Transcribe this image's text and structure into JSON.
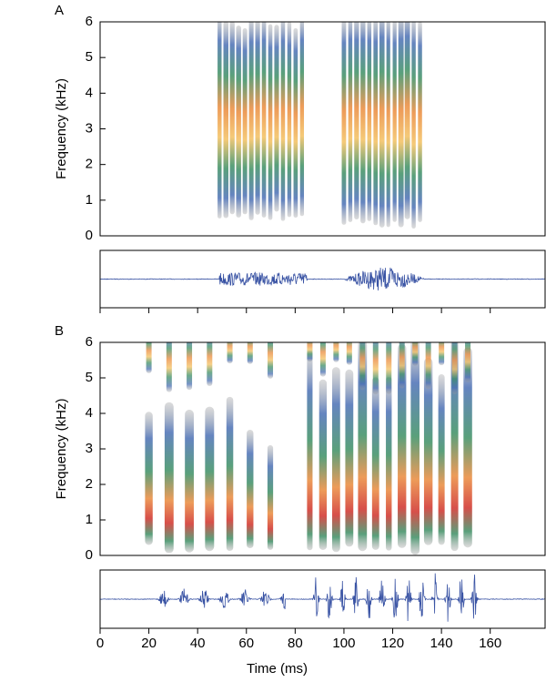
{
  "chart_data": [
    {
      "type": "spectrogram",
      "panel": "A",
      "ylabel": "Frequency (kHz)",
      "ylim": [
        0,
        6
      ],
      "yticks": [
        0,
        1,
        2,
        3,
        4,
        5,
        6
      ],
      "xlim": [
        0,
        182.5
      ],
      "xticks": [
        0,
        20,
        40,
        60,
        80,
        100,
        120,
        140,
        160
      ]
    },
    {
      "type": "spectrogram",
      "panel": "B",
      "ylabel": "Frequency (kHz)",
      "xlabel": "Time (ms)",
      "ylim": [
        0,
        6
      ],
      "yticks": [
        0,
        1,
        2,
        3,
        4,
        5,
        6
      ],
      "xlim": [
        0,
        182.5
      ],
      "xticks": [
        0,
        20,
        40,
        60,
        80,
        100,
        120,
        140,
        160
      ]
    }
  ]
}
